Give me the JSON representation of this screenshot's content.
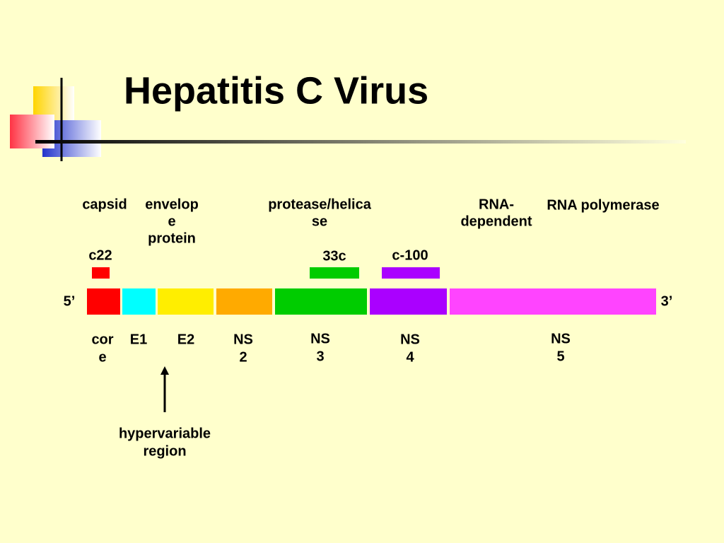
{
  "title": "Hepatitis C Virus",
  "functions": [
    [
      "capsid"
    ],
    [
      "envelop",
      "e",
      "protein"
    ],
    [
      "protease/helica",
      "se"
    ],
    [
      "RNA-",
      "dependent"
    ],
    [
      "RNA polymerase"
    ]
  ],
  "antigens": [
    {
      "label": "c22",
      "color": "#ff0000"
    },
    {
      "label": "33c",
      "color": "#00cc00"
    },
    {
      "label": "c-100",
      "color": "#aa00ff"
    }
  ],
  "ends": [
    "5’",
    "3’"
  ],
  "segments": [
    {
      "lines": [
        "cor",
        "e"
      ],
      "color": "#ff0000"
    },
    {
      "lines": [
        "E1"
      ],
      "color": "#00ffff"
    },
    {
      "lines": [
        "E2"
      ],
      "color": "#ffee00"
    },
    {
      "lines": [
        "NS",
        "2"
      ],
      "color": "#ffaa00"
    },
    {
      "lines": [
        "NS",
        "3"
      ],
      "color": "#00cc00"
    },
    {
      "lines": [
        "NS",
        "4"
      ],
      "color": "#aa00ff"
    },
    {
      "lines": [
        "NS",
        "5"
      ],
      "color": "#ff44ff"
    }
  ],
  "annotation": [
    "hypervariable",
    "region"
  ]
}
